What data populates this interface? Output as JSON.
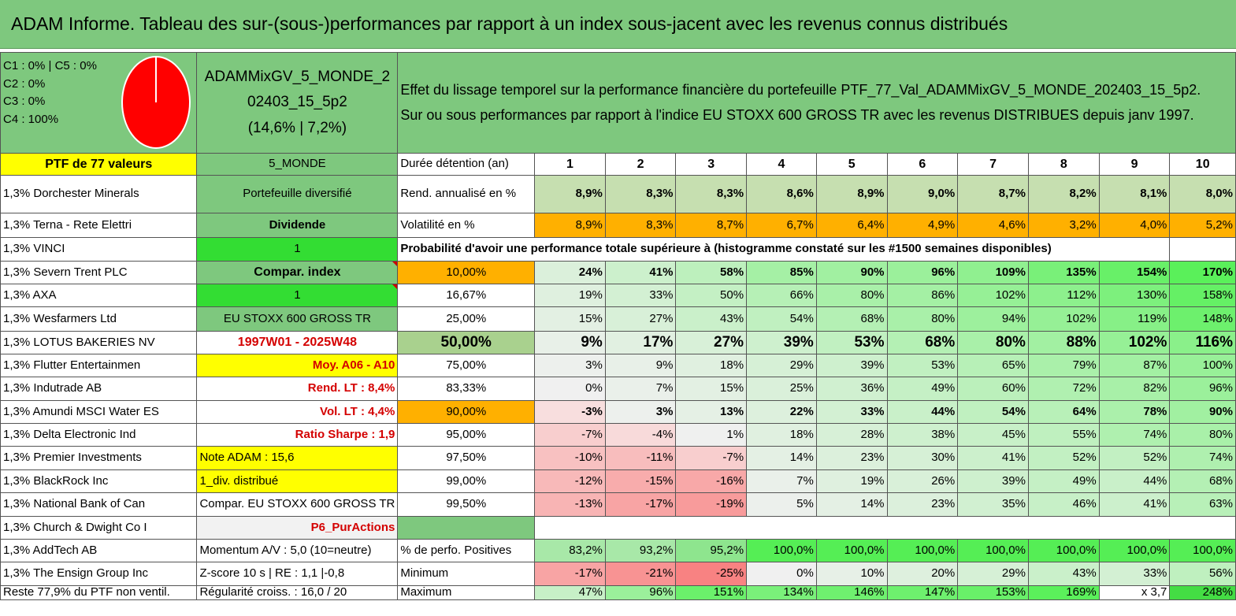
{
  "title": "ADAM Informe. Tableau des sur-(sous-)performances par rapport à un index sous-jacent avec les revenus connus distribués",
  "classes": [
    "C1 : 0% | C5 : 0%",
    "C2 : 0%",
    "C3 : 0%",
    "C4 : 100%"
  ],
  "pie": {
    "color": "#ff0000",
    "value_c4": 100
  },
  "portfolio": {
    "name_line1": "ADAMMixGV_5_MONDE_2",
    "name_line2": "02403_15_5p2",
    "name_line3": "(14,6% | 7,2%)",
    "ptf_label": "PTF de 77 valeurs",
    "category": "5_MONDE"
  },
  "description": {
    "line1": "Effet du lissage temporel sur la performance financière du portefeuille PTF_77_Val_ADAMMixGV_5_MONDE_202403_15_5p2.",
    "line2": "Sur ou sous performances par rapport à l'indice EU STOXX 600 GROSS TR avec les revenus DISTRIBUES depuis janv 1997."
  },
  "holdings": [
    "1,3% Dorchester Minerals",
    "1,3% Terna - Rete Elettri",
    "1,3% VINCI",
    "1,3% Severn Trent PLC",
    "1,3% AXA",
    "1,3% Wesfarmers Ltd",
    "1,3% LOTUS BAKERIES NV",
    "1,3% Flutter Entertainmen",
    "1,3% Indutrade AB",
    "1,3% Amundi MSCI Water ES",
    "1,3% Delta Electronic Ind",
    "1,3% Premier Investments",
    "1,3% BlackRock Inc",
    "1,3% National Bank of Can",
    "1,3% Church & Dwight Co I",
    "1,3% AddTech AB",
    "1,3% The Ensign Group Inc",
    "Reste 77,9% du PTF non ventil."
  ],
  "params": {
    "portefeuille": "Portefeuille diversifié",
    "dividende": "Dividende",
    "v1": "1",
    "compar_index": "Compar. index",
    "v2": "1",
    "index_name": "EU STOXX 600 GROSS TR",
    "period": "1997W01 - 2025W48",
    "moy": "Moy. A06 - A10",
    "rend_lt": "Rend. LT : 8,4%",
    "vol_lt": "Vol. LT : 4,4%",
    "sharpe": "Ratio Sharpe : 1,9",
    "note": "Note ADAM : 15,6",
    "div": "1_div. distribué",
    "compar_full": "Compar. EU STOXX 600 GROSS TR",
    "p6": "P6_PurActions",
    "momentum": "Momentum A/V : 5,0 (10=neutre)",
    "zscore": "Z-score 10 s | RE : 1,1 |-0,8",
    "regularite": "Régularité croiss. : 16,0 / 20"
  },
  "labels": {
    "duree": "Durée détention (an)",
    "rend": "Rend. annualisé en %",
    "vol": "Volatilité en %",
    "proba": "Probabilité d'avoir une performance totale supérieure à (histogramme constaté sur les #1500 semaines disponibles)",
    "positives": "% de perfo. Positives",
    "minimum": "Minimum",
    "maximum": "Maximum"
  },
  "years": [
    "1",
    "2",
    "3",
    "4",
    "5",
    "6",
    "7",
    "8",
    "9",
    "10"
  ],
  "rend": [
    "8,9%",
    "8,3%",
    "8,3%",
    "8,6%",
    "8,9%",
    "9,0%",
    "8,7%",
    "8,2%",
    "8,1%",
    "8,0%"
  ],
  "vol": [
    "8,9%",
    "8,3%",
    "8,7%",
    "6,7%",
    "6,4%",
    "4,9%",
    "4,6%",
    "3,2%",
    "4,0%",
    "5,2%"
  ],
  "proba_rows": [
    {
      "p": "10,00%",
      "vals": [
        "24%",
        "41%",
        "58%",
        "85%",
        "90%",
        "96%",
        "109%",
        "135%",
        "154%",
        "170%"
      ]
    },
    {
      "p": "16,67%",
      "vals": [
        "19%",
        "33%",
        "50%",
        "66%",
        "80%",
        "86%",
        "102%",
        "112%",
        "130%",
        "158%"
      ]
    },
    {
      "p": "25,00%",
      "vals": [
        "15%",
        "27%",
        "43%",
        "54%",
        "68%",
        "80%",
        "94%",
        "102%",
        "119%",
        "148%"
      ]
    },
    {
      "p": "50,00%",
      "vals": [
        "9%",
        "17%",
        "27%",
        "39%",
        "53%",
        "68%",
        "80%",
        "88%",
        "102%",
        "116%"
      ]
    },
    {
      "p": "75,00%",
      "vals": [
        "3%",
        "9%",
        "18%",
        "29%",
        "39%",
        "53%",
        "65%",
        "79%",
        "87%",
        "100%"
      ]
    },
    {
      "p": "83,33%",
      "vals": [
        "0%",
        "7%",
        "15%",
        "25%",
        "36%",
        "49%",
        "60%",
        "72%",
        "82%",
        "96%"
      ]
    },
    {
      "p": "90,00%",
      "vals": [
        "-3%",
        "3%",
        "13%",
        "22%",
        "33%",
        "44%",
        "54%",
        "64%",
        "78%",
        "90%"
      ]
    },
    {
      "p": "95,00%",
      "vals": [
        "-7%",
        "-4%",
        "1%",
        "18%",
        "28%",
        "38%",
        "45%",
        "55%",
        "74%",
        "80%"
      ]
    },
    {
      "p": "97,50%",
      "vals": [
        "-10%",
        "-11%",
        "-7%",
        "14%",
        "23%",
        "30%",
        "41%",
        "52%",
        "52%",
        "74%"
      ]
    },
    {
      "p": "99,00%",
      "vals": [
        "-12%",
        "-15%",
        "-16%",
        "7%",
        "19%",
        "26%",
        "39%",
        "49%",
        "44%",
        "68%"
      ]
    },
    {
      "p": "99,50%",
      "vals": [
        "-13%",
        "-17%",
        "-19%",
        "5%",
        "14%",
        "23%",
        "35%",
        "46%",
        "41%",
        "63%"
      ]
    }
  ],
  "positives": [
    "83,2%",
    "93,2%",
    "95,2%",
    "100,0%",
    "100,0%",
    "100,0%",
    "100,0%",
    "100,0%",
    "100,0%",
    "100,0%"
  ],
  "minimum": [
    "-17%",
    "-21%",
    "-25%",
    "0%",
    "10%",
    "20%",
    "29%",
    "43%",
    "33%",
    "56%"
  ],
  "maximum": [
    "47%",
    "96%",
    "151%",
    "134%",
    "146%",
    "147%",
    "153%",
    "169%",
    "x 3,7",
    "248%"
  ]
}
